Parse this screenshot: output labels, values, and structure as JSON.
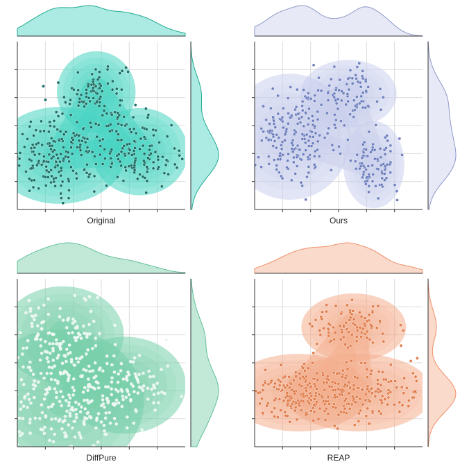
{
  "chart_data": [
    {
      "type": "scatter",
      "subtype": "joint-kde",
      "label": "Original",
      "color": "#1fa98f",
      "fill": "#45d3c1",
      "point": "#166e64",
      "clusters": [
        {
          "cx": 2.35,
          "cy": 3.15,
          "sx": 0.45,
          "sy": 0.42,
          "n": 90
        },
        {
          "cx": 1.25,
          "cy": 1.45,
          "sx": 0.75,
          "sy": 0.5,
          "n": 190
        },
        {
          "cx": 3.65,
          "cy": 1.55,
          "sx": 0.55,
          "sy": 0.45,
          "n": 120
        }
      ],
      "xlim": [
        0,
        5
      ],
      "ylim": [
        0,
        4.5
      ]
    },
    {
      "type": "scatter",
      "subtype": "joint-kde",
      "label": "Ours",
      "color": "#8d99c8",
      "fill": "#c9cfec",
      "point": "#6f80be",
      "clusters": [
        {
          "cx": 2.8,
          "cy": 3.1,
          "sx": 0.55,
          "sy": 0.35,
          "n": 80
        },
        {
          "cx": 1.05,
          "cy": 1.95,
          "sx": 0.7,
          "sy": 0.65,
          "n": 200
        },
        {
          "cx": 3.55,
          "cy": 1.2,
          "sx": 0.35,
          "sy": 0.45,
          "n": 90
        }
      ],
      "xlim": [
        0,
        5
      ],
      "ylim": [
        0,
        4.5
      ]
    },
    {
      "type": "scatter",
      "subtype": "joint-kde",
      "label": "DiffPure",
      "color": "#5fbf98",
      "fill": "#77cfa9",
      "point": "#e8f6ef",
      "clusters": [
        {
          "cx": 1.35,
          "cy": 3.0,
          "sx": 0.7,
          "sy": 0.5,
          "n": 110
        },
        {
          "cx": 1.3,
          "cy": 1.2,
          "sx": 0.95,
          "sy": 0.75,
          "n": 220
        },
        {
          "cx": 3.2,
          "cy": 1.65,
          "sx": 0.7,
          "sy": 0.5,
          "n": 110
        }
      ],
      "xlim": [
        0,
        5
      ],
      "ylim": [
        0,
        4.5
      ]
    },
    {
      "type": "scatter",
      "subtype": "joint-kde",
      "label": "REAP",
      "color": "#f0906a",
      "fill": "#f4ad8c",
      "point": "#e07c4a",
      "clusters": [
        {
          "cx": 2.95,
          "cy": 3.2,
          "sx": 0.6,
          "sy": 0.35,
          "n": 90
        },
        {
          "cx": 1.3,
          "cy": 1.45,
          "sx": 0.8,
          "sy": 0.4,
          "n": 170
        },
        {
          "cx": 3.1,
          "cy": 1.45,
          "sx": 0.85,
          "sy": 0.4,
          "n": 170
        }
      ],
      "xlim": [
        0,
        5
      ],
      "ylim": [
        0,
        4.5
      ]
    }
  ]
}
